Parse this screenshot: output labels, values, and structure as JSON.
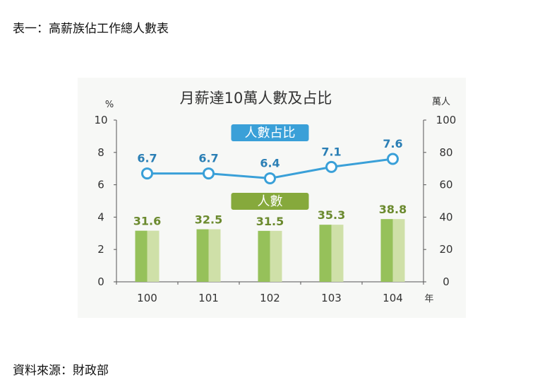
{
  "document": {
    "title": "表一：高薪族佔工作總人數表",
    "source": "資料來源：財政部"
  },
  "colors": {
    "line": "#3aa0d8",
    "bar_dark": "#96c15a",
    "bar_light": "#cfe0a8",
    "bar_label": "#6b8a2e",
    "pill_blue": "#3aa0d8",
    "pill_green": "#86a93c"
  },
  "chart_data": {
    "type": "bar",
    "title": "月薪達10萬人數及占比",
    "categories": [
      "100",
      "101",
      "102",
      "103",
      "104"
    ],
    "xlabel": "年",
    "left_axis": {
      "unit": "%",
      "ylim": [
        0,
        10
      ],
      "ticks": [
        "0",
        "2",
        "4",
        "6",
        "8",
        "10"
      ]
    },
    "right_axis": {
      "unit": "萬人",
      "ylim": [
        0,
        100
      ],
      "ticks": [
        "0",
        "20",
        "40",
        "60",
        "80",
        "100"
      ]
    },
    "series": [
      {
        "name": "人數占比",
        "type": "line",
        "axis": "left",
        "values": [
          6.7,
          6.7,
          6.4,
          7.1,
          7.6
        ],
        "labels": [
          "6.7",
          "6.7",
          "6.4",
          "7.1",
          "7.6"
        ]
      },
      {
        "name": "人數",
        "type": "bar",
        "axis": "right",
        "values": [
          31.6,
          32.5,
          31.5,
          35.3,
          38.8
        ],
        "labels": [
          "31.6",
          "32.5",
          "31.5",
          "35.3",
          "38.8"
        ]
      }
    ],
    "grid": false,
    "legend": "inline"
  }
}
